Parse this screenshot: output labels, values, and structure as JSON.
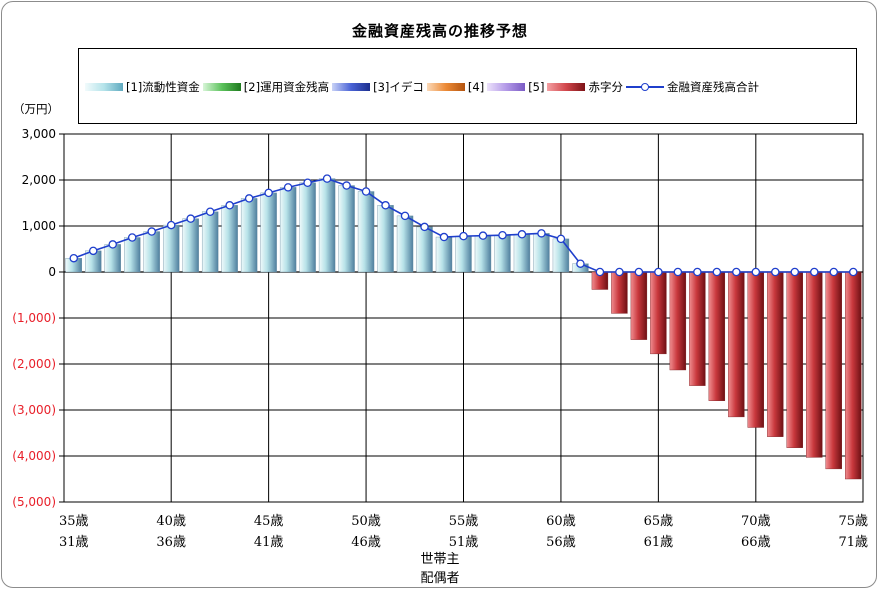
{
  "chart_data": {
    "type": "bar",
    "title": "金融資産残高の推移予想",
    "unit_label": "（万円）",
    "ylim": [
      -5000,
      3000
    ],
    "y_ticks": [
      {
        "value": 3000,
        "label": "3,000"
      },
      {
        "value": 2000,
        "label": "2,000"
      },
      {
        "value": 1000,
        "label": "1,000"
      },
      {
        "value": 0,
        "label": "0"
      },
      {
        "value": -1000,
        "label": "(1,000)"
      },
      {
        "value": -2000,
        "label": "(2,000)"
      },
      {
        "value": -3000,
        "label": "(3,000)"
      },
      {
        "value": -4000,
        "label": "(4,000)"
      },
      {
        "value": -5000,
        "label": "(5,000)"
      }
    ],
    "x_ticks": [
      {
        "index": 0,
        "head": "35歳",
        "spouse": "31歳"
      },
      {
        "index": 5,
        "head": "40歳",
        "spouse": "36歳"
      },
      {
        "index": 10,
        "head": "45歳",
        "spouse": "41歳"
      },
      {
        "index": 15,
        "head": "50歳",
        "spouse": "46歳"
      },
      {
        "index": 20,
        "head": "55歳",
        "spouse": "51歳"
      },
      {
        "index": 25,
        "head": "60歳",
        "spouse": "56歳"
      },
      {
        "index": 30,
        "head": "65歳",
        "spouse": "61歳"
      },
      {
        "index": 35,
        "head": "70歳",
        "spouse": "66歳"
      },
      {
        "index": 40,
        "head": "75歳",
        "spouse": "71歳"
      }
    ],
    "xlabel_lines": [
      "世帯主",
      "配偶者"
    ],
    "legend": [
      {
        "label": "[1]流動性資金",
        "color": "#bfe8ee"
      },
      {
        "label": "[2]運用資金残高",
        "color": "#3aa53a"
      },
      {
        "label": "[3]イデコ",
        "color": "#3350c8"
      },
      {
        "label": "[4]",
        "color": "#e2751f"
      },
      {
        "label": "[5]",
        "color": "#a78be0"
      },
      {
        "label": "赤字分",
        "color": "#c7363a"
      },
      {
        "label": "金融資産残高合計",
        "color": "#1f3fcc"
      }
    ],
    "series": [
      {
        "name": "[1]流動性資金",
        "values": [
          300,
          460,
          600,
          750,
          880,
          1020,
          1160,
          1310,
          1450,
          1600,
          1720,
          1840,
          1940,
          2030,
          1880,
          1750,
          1450,
          1220,
          980,
          760,
          780,
          790,
          800,
          820,
          840,
          720,
          180,
          0,
          0,
          0,
          0,
          0,
          0,
          0,
          0,
          0,
          0,
          0,
          0,
          0,
          0
        ]
      },
      {
        "name": "赤字分",
        "values": [
          0,
          0,
          0,
          0,
          0,
          0,
          0,
          0,
          0,
          0,
          0,
          0,
          0,
          0,
          0,
          0,
          0,
          0,
          0,
          0,
          0,
          0,
          0,
          0,
          0,
          0,
          0,
          -380,
          -900,
          -1470,
          -1780,
          -2130,
          -2470,
          -2800,
          -3150,
          -3380,
          -3580,
          -3820,
          -4030,
          -4280,
          -4500
        ]
      },
      {
        "name": "金融資産残高合計",
        "values": [
          300,
          460,
          600,
          750,
          880,
          1020,
          1160,
          1310,
          1450,
          1600,
          1720,
          1840,
          1940,
          2030,
          1880,
          1750,
          1450,
          1220,
          980,
          760,
          780,
          790,
          800,
          820,
          840,
          720,
          180,
          0,
          0,
          0,
          0,
          0,
          0,
          0,
          0,
          0,
          0,
          0,
          0,
          0,
          0
        ]
      }
    ],
    "grid": true,
    "legend_position": "top"
  }
}
